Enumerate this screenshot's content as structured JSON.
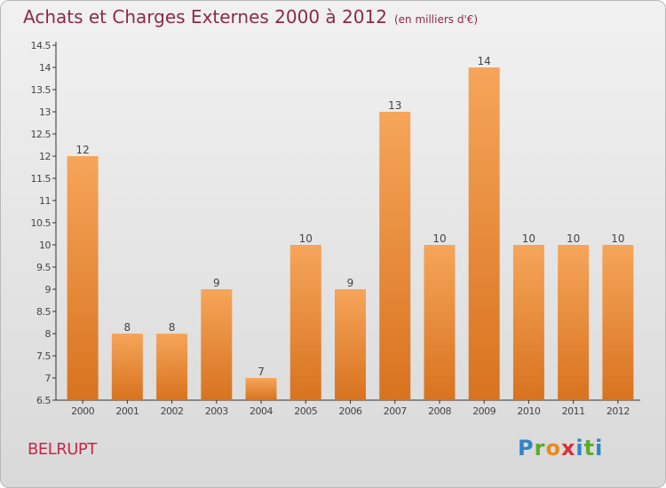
{
  "title": "Achats et Charges Externes 2000 à 2012",
  "unit": "(en milliers d'€)",
  "commune": "BELRUPT",
  "logo": {
    "letters": [
      "P",
      "r",
      "o",
      "x",
      "i",
      "t",
      "i"
    ],
    "colors": [
      "#2f86c8",
      "#5aaa2e",
      "#e98a1c",
      "#d6323a",
      "#2f86c8",
      "#5aaa2e",
      "#2f86c8"
    ]
  },
  "colors": {
    "bar_top": "#f6a55a",
    "bar_bottom": "#d8731f",
    "axis": "#333333",
    "label": "#444444"
  },
  "chart_data": {
    "type": "bar",
    "categories": [
      "2000",
      "2001",
      "2002",
      "2003",
      "2004",
      "2005",
      "2006",
      "2007",
      "2008",
      "2009",
      "2010",
      "2011",
      "2012"
    ],
    "values": [
      12,
      8,
      8,
      9,
      7,
      10,
      9,
      13,
      10,
      14,
      10,
      10,
      10
    ],
    "data_labels": [
      "12",
      "8",
      "8",
      "9",
      "7",
      "10",
      "9",
      "13",
      "10",
      "14",
      "10",
      "10",
      "10"
    ],
    "ylim": [
      6.5,
      14.5
    ],
    "yticks": [
      6.5,
      7,
      7.5,
      8,
      8.5,
      9,
      9.5,
      10,
      10.5,
      11,
      11.5,
      12,
      12.5,
      13,
      13.5,
      14,
      14.5
    ],
    "ytick_labels": [
      "6.5",
      "7",
      "7.5",
      "8",
      "8.5",
      "9",
      "9.5",
      "10",
      "10.5",
      "11",
      "11.5",
      "12",
      "12.5",
      "13",
      "13.5",
      "14",
      "14.5"
    ],
    "grid": false
  }
}
